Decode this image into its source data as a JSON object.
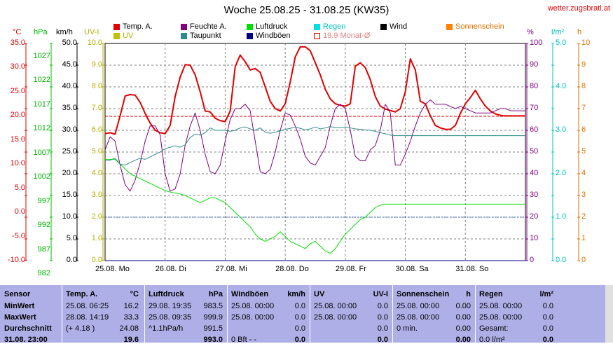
{
  "title": "Woche 25.08.25 - 31.08.25 (KW35)",
  "site": "wetter.zugsbratl.at",
  "legend": [
    {
      "label": "Temp. A.",
      "color": "#e00000",
      "text_color": "#000000",
      "outline": false
    },
    {
      "label": "Feuchte A.",
      "color": "#800080",
      "text_color": "#000000",
      "outline": false
    },
    {
      "label": "Luftdruck",
      "color": "#00e000",
      "text_color": "#000000",
      "outline": false
    },
    {
      "label": "Regen",
      "color": "#00e0e0",
      "text_color": "#00c0c0",
      "outline": false
    },
    {
      "label": "Wind",
      "color": "#000000",
      "text_color": "#000000",
      "outline": false
    },
    {
      "label": "Sonnenschein",
      "color": "#ff8000",
      "text_color": "#e07000",
      "outline": false
    },
    {
      "label": "UV",
      "color": "#c0c000",
      "text_color": "#b0b000",
      "outline": false
    },
    {
      "label": "Taupunkt",
      "color": "#2e8b8b",
      "text_color": "#000000",
      "outline": false
    },
    {
      "label": "Windböen",
      "color": "#000080",
      "text_color": "#000000",
      "outline": false
    },
    {
      "label": "19.9 Monat-Ø",
      "color": "#e00000",
      "text_color": "#e08080",
      "outline": true
    }
  ],
  "axis_units": {
    "temp": "°C",
    "pressure": "hPa",
    "wind": "km/h",
    "uv": "UV-I",
    "humidity": "%",
    "rain": "l/m²",
    "sun": "h"
  },
  "axes": {
    "temp_ticks": [
      "35.0",
      "30.0",
      "25.0",
      "20.0",
      "15.0",
      "10.0",
      "5.0",
      "0.0",
      "-5.0",
      "-10.0"
    ],
    "pressure_ticks": [
      "1027",
      "1022",
      "1017",
      "1012",
      "1007",
      "1002",
      "997",
      "992",
      "987",
      "982"
    ],
    "wind_ticks": [
      "50.0",
      "45.0",
      "40.0",
      "35.0",
      "30.0",
      "25.0",
      "20.0",
      "15.0",
      "10.0",
      "5.0",
      "0.0"
    ],
    "uv_ticks": [
      "10.0",
      "9.0",
      "8.0",
      "7.0",
      "6.0",
      "5.0",
      "4.0",
      "3.0",
      "2.0",
      "1.0",
      "0.0"
    ],
    "humidity_ticks": [
      "100",
      "90",
      "80",
      "70",
      "60",
      "50",
      "40",
      "30",
      "20",
      "10",
      "0"
    ],
    "rain_ticks": [
      "5.0",
      "4.0",
      "3.0",
      "2.0",
      "1.0",
      "0.0"
    ],
    "sun_ticks": [
      "10",
      "9",
      "8",
      "7",
      "6",
      "5",
      "4",
      "3",
      "2",
      "1",
      "0"
    ],
    "day_labels": [
      "25.08.  Mo",
      "26.08.  Di",
      "27.08.  Mi",
      "28.08.  Do",
      "29.08.  Fr",
      "30.08.  Sa",
      "31.08.  So"
    ]
  },
  "colors": {
    "temp": "#e00000",
    "humidity": "#800080",
    "pressure": "#00e000",
    "dewpoint": "#2e8b8b",
    "rain": "#00c8c8",
    "grid": "#808080",
    "monthly": "#e00000",
    "table_bg": "#afafe8"
  },
  "chart_data": {
    "type": "line",
    "x_hours": [
      0,
      2,
      4,
      6,
      8,
      10,
      12,
      14,
      16,
      18,
      20,
      22,
      24,
      26,
      28,
      30,
      32,
      34,
      36,
      38,
      40,
      42,
      44,
      46,
      48,
      50,
      52,
      54,
      56,
      58,
      60,
      62,
      64,
      66,
      68,
      70,
      72,
      74,
      76,
      78,
      80,
      82,
      84,
      86,
      88,
      90,
      92,
      94,
      96,
      98,
      100,
      102,
      104,
      106,
      108,
      110,
      112,
      114,
      116,
      118,
      120,
      122,
      124,
      126,
      128,
      130,
      132,
      134,
      136,
      138,
      140,
      142,
      144,
      146,
      148,
      150,
      152,
      154,
      156,
      158,
      160,
      162,
      164,
      166,
      168
    ],
    "series": [
      {
        "name": "Temp. A.",
        "unit": "°C",
        "color": "#e00000",
        "values": [
          16.3,
          16.5,
          16.2,
          20,
          24.1,
          24.4,
          24.3,
          22.8,
          20.5,
          18.5,
          17,
          16.5,
          16.3,
          18,
          24,
          28,
          30.6,
          30.5,
          28.5,
          25,
          21,
          20.8,
          19.5,
          19,
          18.8,
          21,
          30.2,
          32.6,
          31.2,
          29.5,
          29.8,
          29,
          26,
          23,
          21.5,
          21,
          22.5,
          27,
          32.2,
          34.3,
          34.3,
          33.5,
          31,
          28.5,
          25.5,
          23.5,
          22.5,
          22.2,
          22,
          22.5,
          30.3,
          31,
          30,
          27.5,
          24,
          22,
          21.4,
          21.1,
          20.8,
          21.5,
          25,
          31.8,
          29.5,
          23,
          22.5,
          20,
          18,
          17.5,
          17.2,
          17.2,
          18,
          20.5,
          22.5,
          23.8,
          25.3,
          23.5,
          22,
          21,
          20.4,
          20.1,
          20,
          20,
          20,
          20,
          20
        ]
      },
      {
        "name": "Feuchte A.",
        "unit": "%",
        "color": "#800080",
        "values": [
          51,
          57,
          55,
          44,
          35,
          32,
          37,
          45,
          55,
          62,
          62,
          58,
          40,
          32,
          33,
          40,
          53,
          62,
          68,
          60,
          49,
          41,
          40,
          44,
          55,
          65,
          70,
          70,
          72,
          69,
          55,
          41,
          40,
          42,
          50,
          60,
          68,
          67,
          62,
          56,
          48,
          45,
          44,
          48,
          52,
          62,
          70,
          72,
          70,
          60,
          48,
          46,
          46,
          51,
          53,
          60,
          72,
          68,
          44,
          44,
          49,
          55,
          62,
          68,
          72,
          74,
          72,
          72,
          72,
          71,
          70,
          71,
          70,
          69,
          68,
          68,
          68,
          68,
          69,
          70,
          70,
          69,
          69,
          69,
          69
        ]
      },
      {
        "name": "Luftdruck",
        "unit": "hPa",
        "color": "#00e000",
        "values": [
          1003,
          1003,
          1003,
          1002,
          1001,
          1000,
          999.5,
          999,
          998.5,
          998,
          997.5,
          997,
          996.5,
          996.2,
          996,
          995.8,
          995.5,
          995,
          994.5,
          994,
          994.5,
          995,
          995,
          994.5,
          994,
          993,
          992,
          991,
          990,
          989,
          987.5,
          986.5,
          986,
          986.5,
          987,
          988,
          987,
          986,
          985.5,
          985,
          984.5,
          985.5,
          986,
          985,
          984,
          983.5,
          984.5,
          986,
          987.5,
          988.5,
          989.5,
          990.5,
          991,
          992,
          993,
          993.5,
          993.7,
          993.7,
          993.7,
          993.7,
          993.7,
          993.7,
          993.7,
          993.7,
          993.7,
          993.7,
          993.7,
          993.7,
          993.7,
          993.7,
          993.7,
          993.7,
          993.7,
          993.7,
          993.7,
          993.7,
          993.7,
          993.7,
          993.7,
          993.7,
          993.7,
          993.7,
          993.7,
          993.7,
          993.7
        ]
      },
      {
        "name": "Taupunkt",
        "unit": "°C",
        "color": "#2e8b8b",
        "values": [
          10.8,
          10.8,
          11.2,
          10,
          9.8,
          10.3,
          10.8,
          11.2,
          11,
          11.5,
          12,
          12.5,
          13.2,
          13.5,
          13.8,
          13.5,
          14,
          15.5,
          16.2,
          16,
          16.5,
          17.5,
          17,
          17,
          17,
          16.8,
          17,
          17.5,
          17.7,
          17.3,
          17,
          17.5,
          16.6,
          16.4,
          16.6,
          16.9,
          17.2,
          17.4,
          17.7,
          17.4,
          17.1,
          17.3,
          17.7,
          17.3,
          17.5,
          17.8,
          17.5,
          17.5,
          17.7,
          17.5,
          17.3,
          17.2,
          17.1,
          17,
          16.8,
          16.5,
          16.3,
          16,
          15.9,
          15.9,
          15.9,
          15.9,
          15.9,
          15.9,
          15.9,
          15.9,
          15.9,
          15.9,
          15.9,
          15.9,
          15.9,
          15.9,
          15.9,
          15.9,
          15.9,
          15.9,
          15.9,
          15.9,
          15.9,
          15.9,
          15.9,
          15.9,
          15.9,
          15.9,
          15.9
        ]
      },
      {
        "name": "Regen",
        "unit": "l/m²",
        "color": "#00c8c8",
        "values": [
          0,
          0
        ]
      },
      {
        "name": "Windböen",
        "unit": "km/h",
        "color": "#000080",
        "values": [
          0,
          0
        ]
      }
    ],
    "reference_lines": [
      {
        "label": "19.9 Monat-Ø",
        "value": 19.9,
        "unit": "°C",
        "color": "#e00000"
      },
      {
        "value": 1.0,
        "unit": "l/m²",
        "color": "#2060c0"
      }
    ],
    "ylim_temp": [
      -10,
      35
    ],
    "ylim_pressure": [
      982,
      1027
    ],
    "ylim_humidity": [
      0,
      100
    ],
    "ylim_wind": [
      0,
      50
    ],
    "ylim_uv": [
      0,
      10
    ],
    "ylim_rain": [
      0,
      5
    ],
    "ylim_sun": [
      0,
      10
    ],
    "grid": true
  },
  "table": {
    "headers": [
      {
        "label": "Sensor"
      },
      {
        "label": "Temp. A.",
        "unit": "°C"
      },
      {
        "label": "Luftdruck",
        "unit": "hPa"
      },
      {
        "label": "Windböen",
        "unit": "km/h"
      },
      {
        "label": "UV",
        "unit": "UV-I"
      },
      {
        "label": "Sonnenschein",
        "unit": "h"
      },
      {
        "label": "Regen",
        "unit": "l/m²"
      }
    ],
    "rows": [
      {
        "label": "MinWert",
        "cells": [
          [
            "25.08.  06:25",
            "16.2"
          ],
          [
            "29.08.  19:35",
            "983.5"
          ],
          [
            "25.08.  00:00",
            "0.0"
          ],
          [
            "25.08.  00:00",
            "0.0"
          ],
          [
            "25.08.  00:00",
            "0.00"
          ],
          [
            "25.08.  00:00",
            "0.0"
          ]
        ]
      },
      {
        "label": "MaxWert",
        "cells": [
          [
            "28.08.  14:19",
            "33.3"
          ],
          [
            "25.08.  09:35",
            "999.9"
          ],
          [
            "25.08.  00:00",
            "0.0"
          ],
          [
            "25.08.  00:00",
            "0.0"
          ],
          [
            "25.08.  00:00",
            "0.00"
          ],
          [
            "25.08.  00:00",
            "0.0"
          ]
        ]
      },
      {
        "label": "Durchschnitt",
        "cells": [
          [
            "(+ 4.18 )",
            "24.08"
          ],
          [
            "^1.1hPa/h",
            "991.5"
          ],
          [
            "",
            "0.0"
          ],
          [
            "",
            "0.0"
          ],
          [
            "0 min.",
            "0.00"
          ],
          [
            "Gesamt:",
            "0.0"
          ]
        ]
      },
      {
        "label": "31.08.  23:00",
        "cells": [
          [
            "",
            "19.6"
          ],
          [
            "",
            "993.0"
          ],
          [
            "0 Bft - -",
            "0.0"
          ],
          [
            "",
            "0.0"
          ],
          [
            "",
            "0.00"
          ],
          [
            "0.0 l/m²",
            "0.0"
          ]
        ]
      }
    ]
  }
}
